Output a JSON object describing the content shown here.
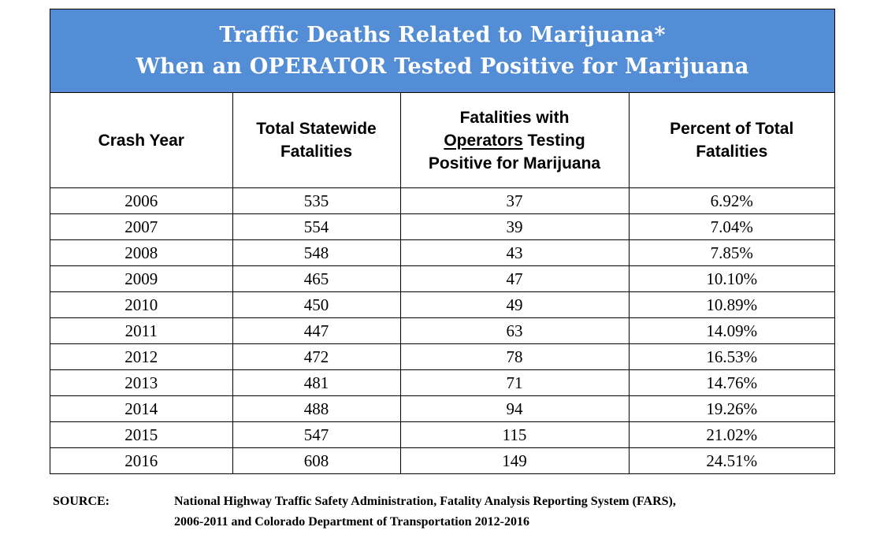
{
  "title": {
    "line1": "Traffic Deaths Related to Marijuana*",
    "line2": "When an OPERATOR Tested Positive for Marijuana"
  },
  "headers": {
    "crash_year": "Crash Year",
    "total_line1": "Total Statewide",
    "total_line2": "Fatalities",
    "fat_line1": "Fatalities with",
    "fat_line2_underlined": "Operators",
    "fat_line2_rest": " Testing",
    "fat_line3": "Positive for Marijuana",
    "pct_line1": "Percent of Total",
    "pct_line2": "Fatalities"
  },
  "rows": [
    {
      "year": "2006",
      "total": "535",
      "fatalities": "37",
      "percent": "6.92%"
    },
    {
      "year": "2007",
      "total": "554",
      "fatalities": "39",
      "percent": "7.04%"
    },
    {
      "year": "2008",
      "total": "548",
      "fatalities": "43",
      "percent": "7.85%"
    },
    {
      "year": "2009",
      "total": "465",
      "fatalities": "47",
      "percent": "10.10%"
    },
    {
      "year": "2010",
      "total": "450",
      "fatalities": "49",
      "percent": "10.89%"
    },
    {
      "year": "2011",
      "total": "447",
      "fatalities": "63",
      "percent": "14.09%"
    },
    {
      "year": "2012",
      "total": "472",
      "fatalities": "78",
      "percent": "16.53%"
    },
    {
      "year": "2013",
      "total": "481",
      "fatalities": "71",
      "percent": "14.76%"
    },
    {
      "year": "2014",
      "total": "488",
      "fatalities": "94",
      "percent": "19.26%"
    },
    {
      "year": "2015",
      "total": "547",
      "fatalities": "115",
      "percent": "21.02%"
    },
    {
      "year": "2016",
      "total": "608",
      "fatalities": "149",
      "percent": "24.51%"
    }
  ],
  "source": {
    "label": "SOURCE:",
    "line1": "National Highway Traffic Safety Administration, Fatality Analysis Reporting System (FARS),",
    "line2": "2006-2011 and Colorado Department of Transportation 2012-2016"
  },
  "colors": {
    "title_background": "#538dd5",
    "title_text": "#ffffff",
    "border": "#000000"
  }
}
